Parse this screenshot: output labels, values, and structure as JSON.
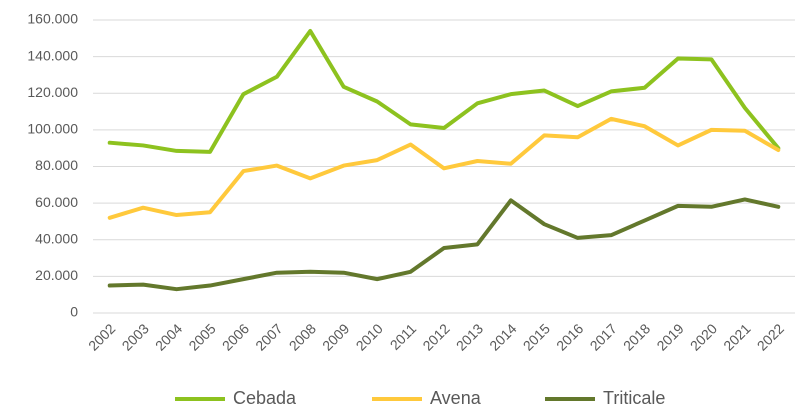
{
  "chart_data": {
    "type": "line",
    "categories": [
      "2002",
      "2003",
      "2004",
      "2005",
      "2006",
      "2007",
      "2008",
      "2009",
      "2010",
      "2011",
      "2012",
      "2013",
      "2014",
      "2015",
      "2016",
      "2017",
      "2018",
      "2019",
      "2020",
      "2021",
      "2022"
    ],
    "series": [
      {
        "name": "Cebada",
        "color": "#8dc21f",
        "values": [
          93000,
          91500,
          88500,
          88000,
          119500,
          129000,
          154000,
          123500,
          115500,
          103000,
          101000,
          114500,
          119500,
          121500,
          113000,
          121000,
          123000,
          139000,
          138500,
          112000,
          90000
        ]
      },
      {
        "name": "Avena",
        "color": "#ffc93c",
        "values": [
          52000,
          57500,
          53500,
          55000,
          77500,
          80500,
          73500,
          80500,
          83500,
          92000,
          79000,
          83000,
          81500,
          97000,
          96000,
          106000,
          102000,
          91500,
          100000,
          99500,
          89000
        ]
      },
      {
        "name": "Triticale",
        "color": "#63782c",
        "values": [
          15000,
          15500,
          13000,
          15000,
          18500,
          22000,
          22500,
          22000,
          18500,
          22500,
          35500,
          37500,
          61500,
          48500,
          41000,
          42500,
          50500,
          58500,
          58000,
          62000,
          58000
        ]
      }
    ],
    "ylim": [
      0,
      160000
    ],
    "yticks": [
      0,
      {
        "value": 20000,
        "label": "20.000"
      },
      {
        "value": 40000,
        "label": "40.000"
      },
      {
        "value": 60000,
        "label": "60.000"
      },
      {
        "value": 80000,
        "label": "80.000"
      },
      {
        "value": 100000,
        "label": "100.000"
      },
      {
        "value": 120000,
        "label": "120.000"
      },
      {
        "value": 140000,
        "label": "140.000"
      },
      {
        "value": 160000,
        "label": "160.000"
      }
    ],
    "grid": true,
    "legend": "bottom"
  }
}
